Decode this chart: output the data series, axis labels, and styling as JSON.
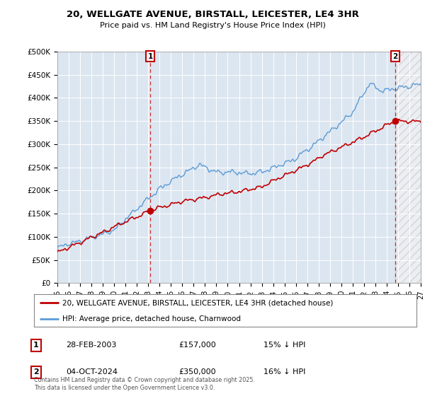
{
  "title": "20, WELLGATE AVENUE, BIRSTALL, LEICESTER, LE4 3HR",
  "subtitle": "Price paid vs. HM Land Registry's House Price Index (HPI)",
  "ylabel_ticks": [
    "£0",
    "£50K",
    "£100K",
    "£150K",
    "£200K",
    "£250K",
    "£300K",
    "£350K",
    "£400K",
    "£450K",
    "£500K"
  ],
  "ytick_values": [
    0,
    50000,
    100000,
    150000,
    200000,
    250000,
    300000,
    350000,
    400000,
    450000,
    500000
  ],
  "xlim_years": [
    1995,
    2027
  ],
  "ylim": [
    0,
    500000
  ],
  "sale1_date": "28-FEB-2003",
  "sale1_price": 157000,
  "sale1_label": "15% ↓ HPI",
  "sale2_date": "04-OCT-2024",
  "sale2_price": 350000,
  "sale2_label": "16% ↓ HPI",
  "hpi_color": "#5b9bd5",
  "price_color": "#c00000",
  "marker1_x": 2003.17,
  "marker1_y": 157000,
  "marker2_x": 2024.76,
  "marker2_y": 350000,
  "legend_property": "20, WELLGATE AVENUE, BIRSTALL, LEICESTER, LE4 3HR (detached house)",
  "legend_hpi": "HPI: Average price, detached house, Charnwood",
  "footnote": "Contains HM Land Registry data © Crown copyright and database right 2025.\nThis data is licensed under the Open Government Licence v3.0.",
  "background_color": "#ffffff",
  "plot_bg_color": "#dce6f1",
  "grid_color": "#ffffff"
}
